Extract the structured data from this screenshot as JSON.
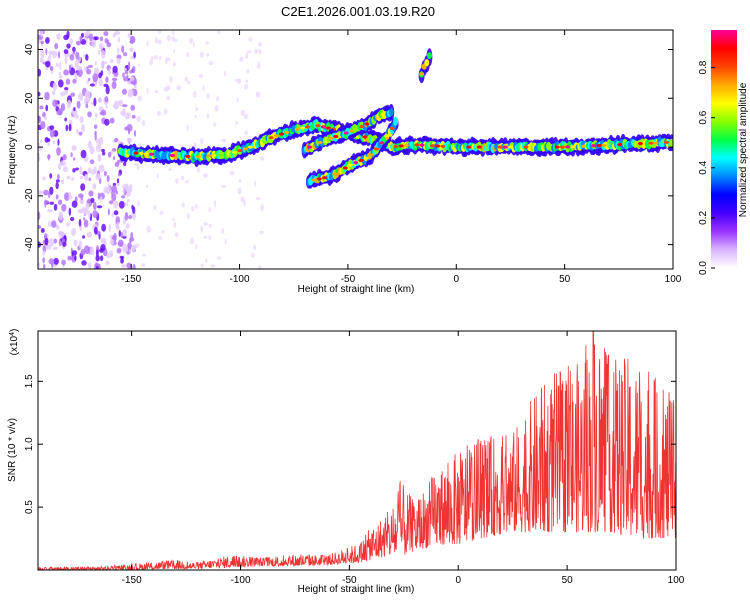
{
  "title": "C2E1.2026.001.03.19.R20",
  "chart_data": [
    {
      "type": "heatmap",
      "name": "spectrogram",
      "xlabel": "Height of straight line (km)",
      "ylabel": "Frequency (Hz)",
      "xlim": [
        -193,
        100
      ],
      "ylim": [
        -50,
        48
      ],
      "xticks": [
        -150,
        -100,
        -50,
        0,
        50,
        100
      ],
      "xtick_labels": [
        "-150",
        "-100",
        "-50",
        "0",
        "50",
        "100"
      ],
      "yticks": [
        -40,
        -20,
        0,
        20,
        40
      ],
      "ytick_labels": [
        "-40",
        "-20",
        "0",
        "20",
        "40"
      ],
      "colorbar": {
        "label": "Normalized spectral amplitude",
        "range": [
          0,
          0.95
        ],
        "ticks": [
          0.0,
          0.2,
          0.4,
          0.6,
          0.8
        ],
        "tick_labels": [
          "0.0",
          "0.2",
          "0.4",
          "0.6",
          "0.8"
        ],
        "colormap": [
          "#ffffff",
          "#d9b3ff",
          "#9933ff",
          "#4400ff",
          "#0000ff",
          "#0088ff",
          "#00ffff",
          "#00ff44",
          "#88ff00",
          "#ffff00",
          "#ffaa00",
          "#ff4400",
          "#ff0000",
          "#ff0099"
        ]
      },
      "ridges": [
        {
          "name": "main ridge",
          "points": [
            [
              -155,
              -2
            ],
            [
              -140,
              -3
            ],
            [
              -120,
              -4
            ],
            [
              -105,
              -3
            ],
            [
              -95,
              0
            ],
            [
              -85,
              4
            ],
            [
              -75,
              7
            ],
            [
              -65,
              9
            ],
            [
              -55,
              7
            ],
            [
              -45,
              5
            ],
            [
              -35,
              2
            ],
            [
              -30,
              0
            ],
            [
              -20,
              1
            ],
            [
              0,
              0
            ],
            [
              25,
              0
            ],
            [
              50,
              0
            ],
            [
              75,
              1
            ],
            [
              100,
              2
            ]
          ]
        },
        {
          "name": "upper branch",
          "points": [
            [
              -70,
              -1
            ],
            [
              -60,
              3
            ],
            [
              -50,
              6
            ],
            [
              -42,
              9
            ],
            [
              -35,
              13
            ],
            [
              -30,
              14
            ]
          ]
        },
        {
          "name": "lower branch",
          "points": [
            [
              -68,
              -14
            ],
            [
              -58,
              -12
            ],
            [
              -48,
              -7
            ],
            [
              -40,
              -4
            ],
            [
              -35,
              1
            ],
            [
              -30,
              7
            ],
            [
              -28,
              10
            ]
          ]
        },
        {
          "name": "faint trace",
          "points": [
            [
              -16,
              30
            ],
            [
              -12,
              38
            ]
          ]
        }
      ],
      "noise_region": {
        "x_range": [
          -193,
          -148
        ],
        "note": "broadband noise speckle"
      }
    },
    {
      "type": "line",
      "name": "snr",
      "xlabel": "Height of straight line (km)",
      "ylabel": "SNR (10 * v/v)",
      "y_multiplier_label": "(x10",
      "y_multiplier_exp": "4",
      "y_multiplier_close": ")",
      "xlim": [
        -193,
        100
      ],
      "ylim": [
        0,
        1.9
      ],
      "xticks": [
        -150,
        -100,
        -50,
        0,
        50,
        100
      ],
      "xtick_labels": [
        "-150",
        "-100",
        "-50",
        "0",
        "50",
        "100"
      ],
      "yticks": [
        0.5,
        1.0,
        1.5
      ],
      "ytick_labels": [
        "0.5",
        "1.0",
        "1.5"
      ],
      "color": "#ee3333",
      "envelope": {
        "x": [
          -193,
          -160,
          -150,
          -130,
          -120,
          -105,
          -90,
          -75,
          -60,
          -45,
          -40,
          -30,
          -27,
          -20,
          -10,
          0,
          10,
          25,
          35,
          45,
          55,
          62,
          70,
          80,
          90,
          100
        ],
        "upper": [
          0.02,
          0.03,
          0.05,
          0.08,
          0.06,
          0.12,
          0.1,
          0.13,
          0.12,
          0.22,
          0.35,
          0.5,
          0.72,
          0.55,
          0.8,
          0.95,
          1.05,
          1.1,
          1.4,
          1.6,
          1.65,
          1.92,
          1.7,
          1.7,
          1.55,
          1.35
        ],
        "lower": [
          0.0,
          0.0,
          0.0,
          0.01,
          0.01,
          0.02,
          0.03,
          0.03,
          0.04,
          0.06,
          0.08,
          0.12,
          0.1,
          0.15,
          0.2,
          0.2,
          0.25,
          0.3,
          0.3,
          0.3,
          0.3,
          0.3,
          0.3,
          0.25,
          0.25,
          0.25
        ]
      },
      "peak": {
        "x": 62,
        "y": 1.92
      }
    }
  ]
}
